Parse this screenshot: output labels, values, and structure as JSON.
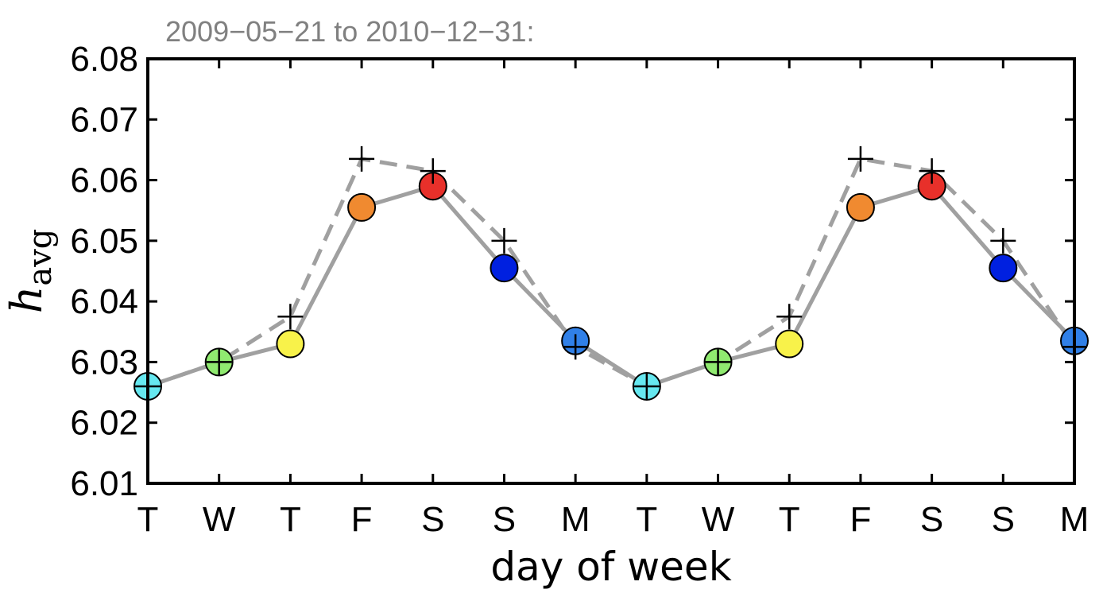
{
  "chart_data": {
    "type": "line",
    "subtitle": "2009−05−21 to 2010−12−31:",
    "xlabel": "day of week",
    "ylabel_main": "h",
    "ylabel_sub": "avg",
    "categories": [
      "T",
      "W",
      "T",
      "F",
      "S",
      "S",
      "M",
      "T",
      "W",
      "T",
      "F",
      "S",
      "S",
      "M"
    ],
    "ylim": [
      6.01,
      6.08
    ],
    "yticks": [
      "6.01",
      "6.02",
      "6.03",
      "6.04",
      "6.05",
      "6.06",
      "6.07",
      "6.08"
    ],
    "grid": false,
    "series": [
      {
        "style": "solid-circles",
        "line_color": "#a0a0a0",
        "values": [
          6.026,
          6.03,
          6.033,
          6.0555,
          6.059,
          6.0455,
          6.0335,
          6.026,
          6.03,
          6.033,
          6.0555,
          6.059,
          6.0455,
          6.0335
        ],
        "marker_colors": [
          "#66e8f0",
          "#90ea70",
          "#f8f24a",
          "#f08a30",
          "#e8302a",
          "#0020e0",
          "#3080e8",
          "#66e8f0",
          "#90ea70",
          "#f8f24a",
          "#f08a30",
          "#e8302a",
          "#0020e0",
          "#3080e8"
        ]
      },
      {
        "style": "dashed-plus",
        "line_color": "#a0a0a0",
        "values": [
          6.026,
          6.03,
          6.0375,
          6.0635,
          6.0615,
          6.05,
          6.0325,
          6.026,
          6.03,
          6.0375,
          6.0635,
          6.0615,
          6.05,
          6.0325
        ]
      }
    ]
  }
}
